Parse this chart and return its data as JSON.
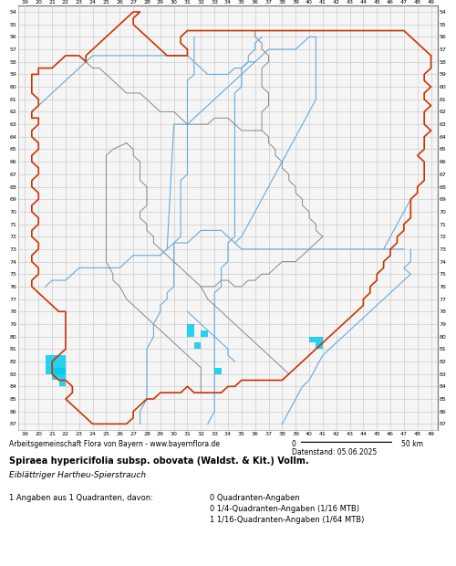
{
  "title_line1": "Spiraea hypericifolia subsp. obovata (Waldst. & Kit.) Vollm.",
  "title_line2": "Eiblättriger Hartheu-Spierstrauch",
  "footer_left": "Arbeitsgemeinschaft Flora von Bayern - www.bayernflora.de",
  "date_label": "Datenstand: 05.06.2025",
  "stats_line1": "1 Angaben aus 1 Quadranten, davon:",
  "stats_right1": "0 Quadranten-Angaben",
  "stats_right2": "0 1/4-Quadranten-Angaben (1/16 MTB)",
  "stats_right3": "1 1/16-Quadranten-Angaben (1/64 MTB)",
  "x_min": 19,
  "x_max": 49,
  "y_min": 54,
  "y_max": 87,
  "grid_color": "#cccccc",
  "map_bg_color": "#f5f5f5",
  "outer_border_color": "#cc3300",
  "inner_border_color": "#888888",
  "river_color": "#66aadd",
  "highlight_color": "#00ccee",
  "fig_width": 5.0,
  "fig_height": 6.2
}
